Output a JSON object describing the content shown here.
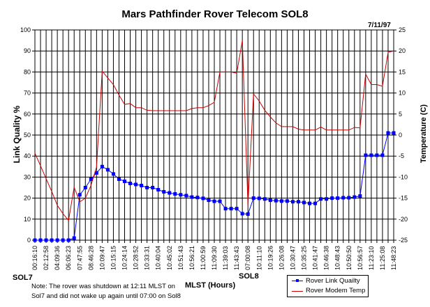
{
  "chart_data": {
    "type": "line",
    "title": "Mars Pathfinder Rover Telecom SOL8",
    "date": "7/11/97",
    "xlabel": "MLST (Hours)",
    "ylabel": "Link Quality %",
    "y2label": "Temperature (C)",
    "ylim": [
      0,
      100
    ],
    "y2lim": [
      -25,
      25
    ],
    "yticks": [
      0,
      10,
      20,
      30,
      40,
      50,
      60,
      70,
      80,
      90,
      100
    ],
    "y2ticks": [
      -25,
      -20,
      -15,
      -10,
      -5,
      0,
      5,
      10,
      15,
      20,
      25
    ],
    "grid": true,
    "x_tick_labels": [
      "00:16:10",
      "02:12:58",
      "04:09:36",
      "06:06:23",
      "07:47:55",
      "08:46:28",
      "10:09:47",
      "10:15:15",
      "10:24:14",
      "10:28:52",
      "10:33:31",
      "10:40:04",
      "10:45:02",
      "10:51:43",
      "10:56:21",
      "11:00:59",
      "11:09:30",
      "11:39:03",
      "11:43:43",
      "07:00:08",
      "10:11:10",
      "10:19:26",
      "10:26:08",
      "10:30:47",
      "10:35:25",
      "10:41:47",
      "10:46:38",
      "10:48:43",
      "10:50:50",
      "10:56:57",
      "11:23:10",
      "11:25:08",
      "11:48:23"
    ],
    "x_tick_every": 2,
    "sol_labels": {
      "sol7": "SOL7",
      "sol8": "SOL8"
    },
    "note_lines": [
      "Note: The rover was shutdown at 12:11 MLST on",
      "Sol7 and did not wake up again until 07:00 on Sol8"
    ],
    "legend_position": "bottom-right",
    "series": [
      {
        "name": "Rover Link Quailty",
        "axis": "left",
        "color": "#0000ff",
        "marker": "square",
        "values": [
          0,
          0,
          0,
          0,
          0,
          0,
          0,
          1,
          21.6,
          25,
          29,
          32,
          35,
          33.5,
          31.5,
          29,
          28,
          27,
          26.5,
          26,
          25,
          25,
          24,
          23,
          22.5,
          22,
          21.6,
          21.2,
          20.5,
          20.3,
          19.9,
          19,
          18.5,
          18.5,
          15,
          15,
          15,
          12.6,
          12.4,
          20,
          19.9,
          19.6,
          19,
          18.8,
          18.6,
          18.6,
          18.3,
          18.3,
          17.9,
          17.5,
          17.5,
          19.6,
          19.6,
          20,
          20,
          20.2,
          20.2,
          20.5,
          21,
          40.4,
          40.4,
          40.4,
          40.4,
          51,
          51
        ]
      },
      {
        "name": "Rover Modem Temp",
        "axis": "right",
        "color": "#cc0000",
        "marker": "none",
        "values": [
          -4.3,
          -7.3,
          -10.4,
          -13.4,
          -16.7,
          -18.7,
          -20.3,
          -12.4,
          -15.9,
          -15,
          -12,
          -7.6,
          15.2,
          13.6,
          12,
          9.5,
          7.3,
          7.5,
          6.5,
          6.5,
          5.9,
          5.8,
          5.8,
          5.8,
          5.8,
          5.8,
          5.8,
          5.8,
          6.3,
          6.5,
          6.5,
          7,
          7.8,
          15,
          15,
          15,
          14.7,
          22.5,
          -16.7,
          9.8,
          8.1,
          5.9,
          4.3,
          2.9,
          2,
          2,
          2,
          1.4,
          1.2,
          1.2,
          1.2,
          1.9,
          1.2,
          1.2,
          1.2,
          1.2,
          1.2,
          1.8,
          1.7,
          14.5,
          12,
          12,
          11.6,
          19.7,
          20
        ]
      }
    ]
  }
}
